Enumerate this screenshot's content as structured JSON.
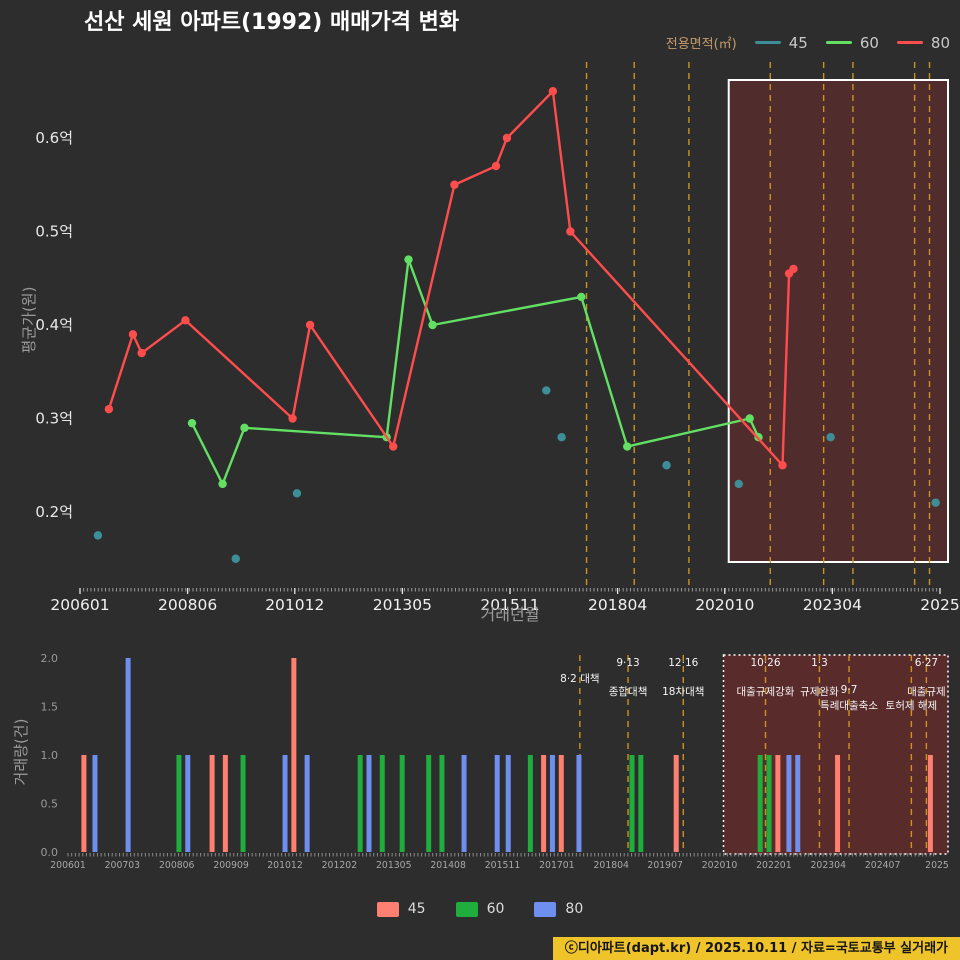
{
  "page": {
    "title": "선산 세원 아파트(1992) 매매가격 변화",
    "footer": "ⓒ디아파트(dapt.kr) / 2025.10.11 / 자료=국토교통부 실거래가"
  },
  "top_legend": {
    "title": "전용면적(㎡)",
    "items": [
      {
        "label": "45",
        "color": "#3e8e99"
      },
      {
        "label": "60",
        "color": "#63e063"
      },
      {
        "label": "80",
        "color": "#ff4d4d"
      }
    ]
  },
  "bottom_legend": {
    "items": [
      {
        "label": "45",
        "color": "#ff8070"
      },
      {
        "label": "60",
        "color": "#1fae3d"
      },
      {
        "label": "80",
        "color": "#6f8fef"
      }
    ]
  },
  "chart_data": [
    {
      "type": "line",
      "title": "선산 세원 아파트(1992) 매매가격 변화",
      "ylabel": "평균가(원)",
      "xlabel": "거래년월",
      "unit": "억",
      "grid": false,
      "legend_position": "top-right",
      "x_domain": [
        2006.04,
        2025.7
      ],
      "y_domain": [
        0.13,
        0.68
      ],
      "y_ticks": [
        {
          "v": 0.2,
          "label": "0.2억"
        },
        {
          "v": 0.3,
          "label": "0.3억"
        },
        {
          "v": 0.4,
          "label": "0.4억"
        },
        {
          "v": 0.5,
          "label": "0.5억"
        },
        {
          "v": 0.6,
          "label": "0.6억"
        }
      ],
      "x_ticks": [
        {
          "t": 2006.04,
          "label": "200601"
        },
        {
          "t": 2008.5,
          "label": "200806"
        },
        {
          "t": 2010.95,
          "label": "201012"
        },
        {
          "t": 2013.41,
          "label": "201305"
        },
        {
          "t": 2015.87,
          "label": "201511"
        },
        {
          "t": 2018.33,
          "label": "201804"
        },
        {
          "t": 2020.78,
          "label": "202010"
        },
        {
          "t": 2023.24,
          "label": "202304"
        },
        {
          "t": 2025.7,
          "label": "2025"
        }
      ],
      "series": [
        {
          "name": "45",
          "type": "scatter",
          "color": "#3e8e99",
          "points": [
            [
              2006.45,
              0.175
            ],
            [
              2009.6,
              0.15
            ],
            [
              2011.0,
              0.22
            ],
            [
              2016.7,
              0.33
            ],
            [
              2017.05,
              0.28
            ],
            [
              2019.45,
              0.25
            ],
            [
              2021.1,
              0.23
            ],
            [
              2023.2,
              0.28
            ],
            [
              2025.6,
              0.21
            ]
          ]
        },
        {
          "name": "60",
          "type": "line",
          "color": "#63e063",
          "points": [
            [
              2008.6,
              0.295
            ],
            [
              2009.3,
              0.23
            ],
            [
              2009.8,
              0.29
            ],
            [
              2013.05,
              0.28
            ],
            [
              2013.55,
              0.47
            ],
            [
              2014.1,
              0.4
            ],
            [
              2017.5,
              0.43
            ],
            [
              2018.55,
              0.27
            ],
            [
              2021.35,
              0.3
            ],
            [
              2021.55,
              0.28
            ]
          ]
        },
        {
          "name": "80",
          "type": "line",
          "color": "#ff4d4d",
          "points": [
            [
              2006.7,
              0.31
            ],
            [
              2007.25,
              0.39
            ],
            [
              2007.45,
              0.37
            ],
            [
              2008.45,
              0.405
            ],
            [
              2010.9,
              0.3
            ],
            [
              2011.3,
              0.4
            ],
            [
              2013.2,
              0.27
            ],
            [
              2014.6,
              0.55
            ],
            [
              2015.55,
              0.57
            ],
            [
              2015.8,
              0.6
            ],
            [
              2016.85,
              0.65
            ],
            [
              2017.25,
              0.5
            ],
            [
              2022.1,
              0.25
            ],
            [
              2022.25,
              0.455
            ],
            [
              2022.35,
              0.46
            ]
          ]
        }
      ],
      "highlight_region": {
        "t_start": 2020.87,
        "t_end": 2025.75,
        "fill": "rgba(165,42,42,0.30)",
        "border": "#ffffff"
      }
    },
    {
      "type": "bar",
      "ylabel": "거래량(건)",
      "ylim": [
        0,
        2
      ],
      "grid": false,
      "y_ticks": [
        {
          "v": 0.0,
          "label": "0.0"
        },
        {
          "v": 0.5,
          "label": "0.5"
        },
        {
          "v": 1.0,
          "label": "1.0"
        },
        {
          "v": 1.5,
          "label": "1.5"
        },
        {
          "v": 2.0,
          "label": "2.0"
        }
      ],
      "x_ticks": [
        {
          "t": 2006.04,
          "label": "200601"
        },
        {
          "t": 2007.27,
          "label": "200703"
        },
        {
          "t": 2008.5,
          "label": "200806"
        },
        {
          "t": 2009.73,
          "label": "200909"
        },
        {
          "t": 2010.95,
          "label": "201012"
        },
        {
          "t": 2012.18,
          "label": "201202"
        },
        {
          "t": 2013.41,
          "label": "201305"
        },
        {
          "t": 2014.64,
          "label": "201408"
        },
        {
          "t": 2015.87,
          "label": "201511"
        },
        {
          "t": 2017.1,
          "label": "201701"
        },
        {
          "t": 2018.33,
          "label": "201804"
        },
        {
          "t": 2019.55,
          "label": "201907"
        },
        {
          "t": 2020.78,
          "label": "202010"
        },
        {
          "t": 2022.01,
          "label": "202201"
        },
        {
          "t": 2023.24,
          "label": "202304"
        },
        {
          "t": 2024.47,
          "label": "202407"
        },
        {
          "t": 2025.7,
          "label": "2025"
        }
      ],
      "colors": {
        "45": "#ff8070",
        "60": "#1fae3d",
        "80": "#6f8fef"
      },
      "bars": [
        {
          "t": 2006.4,
          "size": "45",
          "count": 1
        },
        {
          "t": 2006.65,
          "size": "80",
          "count": 1
        },
        {
          "t": 2007.4,
          "size": "80",
          "count": 2
        },
        {
          "t": 2008.55,
          "size": "60",
          "count": 1
        },
        {
          "t": 2008.75,
          "size": "80",
          "count": 1
        },
        {
          "t": 2009.3,
          "size": "45",
          "count": 1
        },
        {
          "t": 2009.6,
          "size": "45",
          "count": 1
        },
        {
          "t": 2010.0,
          "size": "60",
          "count": 1
        },
        {
          "t": 2010.95,
          "size": "80",
          "count": 1
        },
        {
          "t": 2011.15,
          "size": "45",
          "count": 2
        },
        {
          "t": 2011.45,
          "size": "80",
          "count": 1
        },
        {
          "t": 2012.65,
          "size": "60",
          "count": 1
        },
        {
          "t": 2012.85,
          "size": "80",
          "count": 1
        },
        {
          "t": 2013.15,
          "size": "60",
          "count": 1
        },
        {
          "t": 2013.6,
          "size": "60",
          "count": 1
        },
        {
          "t": 2014.2,
          "size": "60",
          "count": 1
        },
        {
          "t": 2014.5,
          "size": "60",
          "count": 1
        },
        {
          "t": 2015.0,
          "size": "80",
          "count": 1
        },
        {
          "t": 2015.75,
          "size": "80",
          "count": 1
        },
        {
          "t": 2016.0,
          "size": "80",
          "count": 1
        },
        {
          "t": 2016.5,
          "size": "60",
          "count": 1
        },
        {
          "t": 2016.8,
          "size": "45",
          "count": 1
        },
        {
          "t": 2017.0,
          "size": "80",
          "count": 1
        },
        {
          "t": 2017.2,
          "size": "45",
          "count": 1
        },
        {
          "t": 2017.6,
          "size": "80",
          "count": 1
        },
        {
          "t": 2018.8,
          "size": "60",
          "count": 1
        },
        {
          "t": 2019.0,
          "size": "60",
          "count": 1
        },
        {
          "t": 2019.8,
          "size": "45",
          "count": 1
        },
        {
          "t": 2021.7,
          "size": "60",
          "count": 1
        },
        {
          "t": 2021.9,
          "size": "60",
          "count": 1
        },
        {
          "t": 2022.1,
          "size": "45",
          "count": 1
        },
        {
          "t": 2022.35,
          "size": "80",
          "count": 1
        },
        {
          "t": 2022.55,
          "size": "80",
          "count": 1
        },
        {
          "t": 2023.45,
          "size": "45",
          "count": 1
        },
        {
          "t": 2025.55,
          "size": "45",
          "count": 1
        }
      ],
      "highlight_region": {
        "t_start": 2020.87,
        "t_end": 2025.75,
        "fill": "rgba(165,42,42,0.38)",
        "border": "#ffffff"
      },
      "policies": {
        "color": "#c9951f",
        "dates": [
          2017.62,
          2018.71,
          2019.96,
          2021.82,
          2023.04,
          2023.71,
          2025.12,
          2025.46
        ],
        "labels": [
          {
            "t": 2017.62,
            "text": "8·2 대책",
            "row": 1
          },
          {
            "t": 2018.71,
            "text": "9·13",
            "row": 0
          },
          {
            "t": 2018.71,
            "text": "종합대책",
            "row": 2
          },
          {
            "t": 2019.96,
            "text": "12·16",
            "row": 0
          },
          {
            "t": 2019.96,
            "text": "18차대책",
            "row": 2
          },
          {
            "t": 2021.82,
            "text": "10·26",
            "row": 0
          },
          {
            "t": 2021.82,
            "text": "대출규제강화",
            "row": 2
          },
          {
            "t": 2023.04,
            "text": "1·3",
            "row": 0
          },
          {
            "t": 2023.04,
            "text": "규제완화",
            "row": 2
          },
          {
            "t": 2023.71,
            "text": "9·7",
            "row": 2
          },
          {
            "t": 2023.71,
            "text": "특례대출축소",
            "row": 3
          },
          {
            "t": 2025.12,
            "text": "토허제 해제",
            "row": 3
          },
          {
            "t": 2025.46,
            "text": "6·27",
            "row": 0
          },
          {
            "t": 2025.46,
            "text": "대출규제",
            "row": 2
          }
        ]
      }
    }
  ]
}
